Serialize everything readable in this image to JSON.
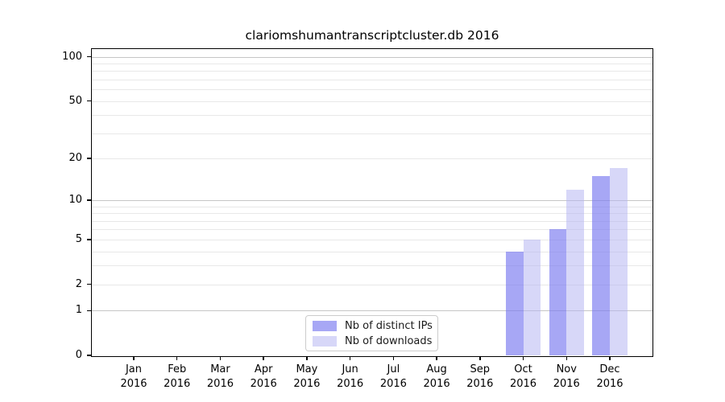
{
  "chart_data": {
    "type": "bar",
    "title": "clariomshumantranscriptcluster.db 2016",
    "x_categories": [
      {
        "month": "Jan",
        "year": "2016"
      },
      {
        "month": "Feb",
        "year": "2016"
      },
      {
        "month": "Mar",
        "year": "2016"
      },
      {
        "month": "Apr",
        "year": "2016"
      },
      {
        "month": "May",
        "year": "2016"
      },
      {
        "month": "Jun",
        "year": "2016"
      },
      {
        "month": "Jul",
        "year": "2016"
      },
      {
        "month": "Aug",
        "year": "2016"
      },
      {
        "month": "Sep",
        "year": "2016"
      },
      {
        "month": "Oct",
        "year": "2016"
      },
      {
        "month": "Nov",
        "year": "2016"
      },
      {
        "month": "Dec",
        "year": "2016"
      }
    ],
    "series": [
      {
        "id": "distinct-ips",
        "name": "Nb of distinct IPs",
        "color": "rgba(121,121,240,0.66)",
        "values": [
          0,
          0,
          0,
          0,
          0,
          0,
          0,
          0,
          0,
          4,
          6,
          15
        ]
      },
      {
        "id": "downloads",
        "name": "Nb of downloads",
        "color": "rgba(178,178,242,0.52)",
        "values": [
          0,
          0,
          0,
          0,
          0,
          0,
          0,
          0,
          0,
          5,
          12,
          17
        ]
      }
    ],
    "y_axis": {
      "scale": "log10(1+x)",
      "tick_values": [
        0,
        1,
        2,
        5,
        10,
        20,
        50,
        100
      ],
      "range_max": 113
    },
    "grid": {
      "major_values": [
        1,
        10,
        100
      ],
      "minor_values": [
        2,
        3,
        4,
        5,
        6,
        7,
        8,
        9,
        20,
        30,
        40,
        50,
        60,
        70,
        80,
        90
      ],
      "major_color": "#c6c6c6",
      "minor_color": "#e8e8e8"
    },
    "legend_position": "lower center",
    "xlabel": "",
    "ylabel": ""
  }
}
